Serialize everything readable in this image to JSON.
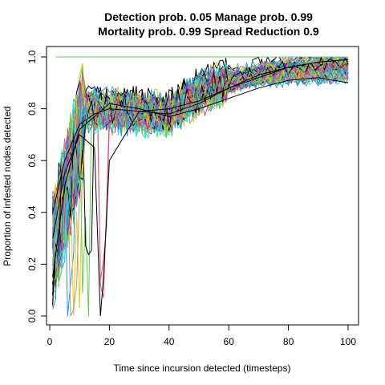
{
  "chart_data": {
    "type": "line",
    "title": "Detection prob. 0.05 Manage prob. 0.99",
    "subtitle": "Mortality prob. 0.99 Spread Reduction 0.9",
    "xlabel": "Time since incursion detected (timesteps)",
    "ylabel": "Proportion of infested nodes detected",
    "xlim": [
      0,
      100
    ],
    "ylim": [
      0,
      1
    ],
    "x_ticks": [
      "0",
      "20",
      "40",
      "60",
      "80",
      "100"
    ],
    "y_ticks": [
      "0.0",
      "0.2",
      "0.4",
      "0.6",
      "0.8",
      "1.0"
    ],
    "x_tick_values": [
      0,
      20,
      40,
      60,
      80,
      100
    ],
    "y_tick_values": [
      0,
      0.2,
      0.4,
      0.6,
      0.8,
      1.0
    ],
    "grid": false,
    "legend": "none",
    "series_count": 100,
    "series_note": "Individual simulation runs, x = 1..100; values approximated from the figure",
    "colors": [
      "#000000",
      "#DF536B",
      "#61D04F",
      "#2297E6",
      "#28E2E5",
      "#CD0BBC",
      "#F5C710",
      "#9E9E9E"
    ],
    "reference_line": {
      "y": 1.0,
      "x_from": 2,
      "x_to": 100,
      "color": "#61D04F"
    },
    "representative_series": [
      {
        "x": [
          1,
          5,
          10,
          15,
          20,
          30,
          40,
          50,
          60,
          70,
          80,
          90,
          100
        ],
        "y": [
          0.4,
          0.6,
          0.74,
          0.78,
          0.8,
          0.79,
          0.78,
          0.82,
          0.88,
          0.93,
          0.96,
          0.98,
          0.99
        ]
      },
      {
        "x": [
          1,
          5,
          10,
          15,
          17,
          18,
          20,
          30,
          40,
          50,
          60,
          70,
          80,
          90,
          100
        ],
        "y": [
          0.3,
          0.55,
          0.7,
          0.65,
          0.0,
          0.15,
          0.6,
          0.79,
          0.8,
          0.83,
          0.88,
          0.92,
          0.96,
          0.98,
          0.99
        ]
      },
      {
        "x": [
          1,
          5,
          10,
          20,
          30,
          40,
          50,
          60,
          70,
          80,
          90,
          100
        ],
        "y": [
          0.15,
          0.5,
          0.72,
          0.82,
          0.8,
          0.77,
          0.8,
          0.84,
          0.88,
          0.91,
          0.92,
          0.9
        ]
      }
    ]
  }
}
